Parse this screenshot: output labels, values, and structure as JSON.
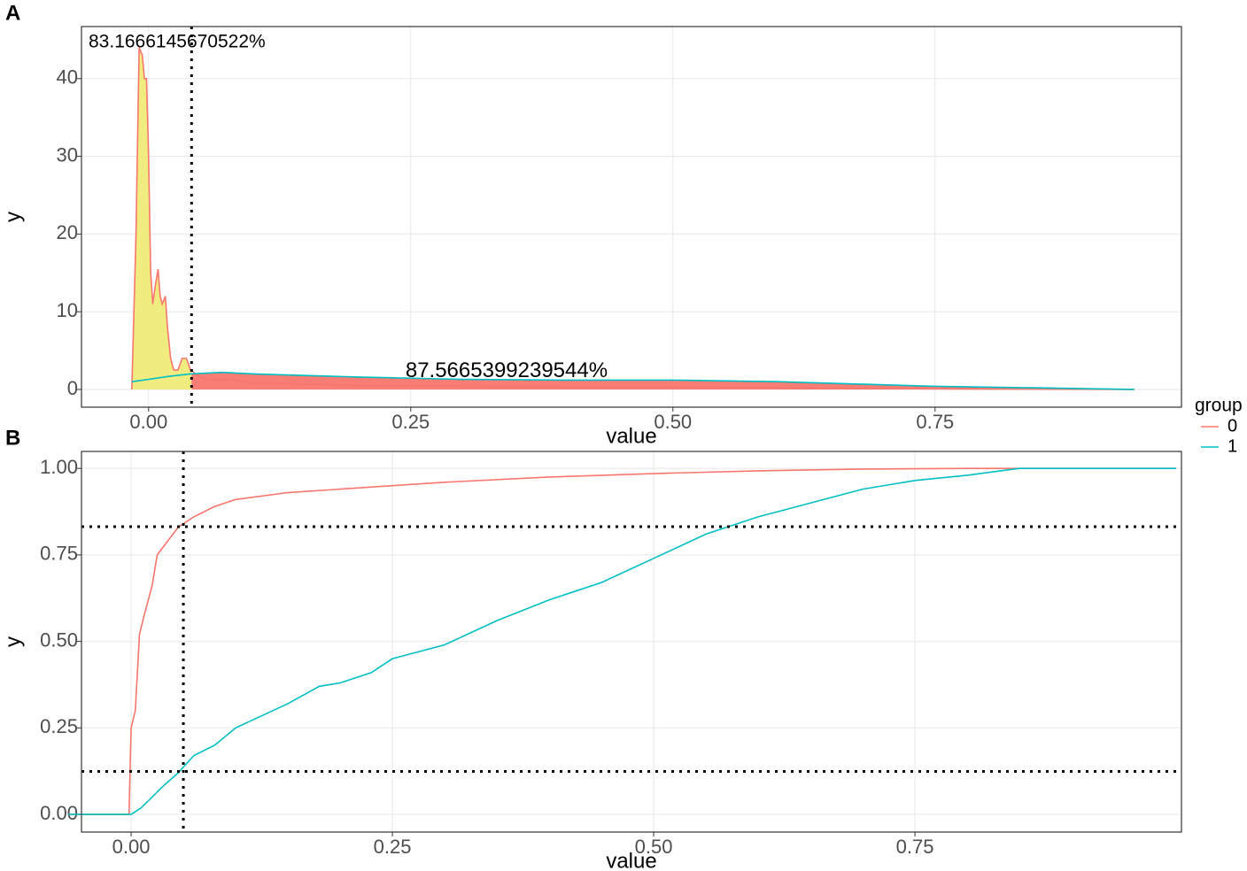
{
  "legend": {
    "title": "group",
    "entries": [
      {
        "label": "0",
        "color": "#F8766D"
      },
      {
        "label": "1",
        "color": "#00BFC4"
      }
    ]
  },
  "chart_data": [
    {
      "type": "line",
      "panel": "A",
      "xlabel": "value",
      "ylabel": "y",
      "xlim": [
        -0.064,
        0.985
      ],
      "ylim": [
        -2.28,
        46.7
      ],
      "xticks": [
        {
          "value": 0,
          "label": "0.00"
        },
        0.25,
        {
          "value": 0.5,
          "label": "0.50"
        },
        0.75
      ],
      "yticks": [
        0,
        10,
        20,
        30,
        40
      ],
      "grid": true,
      "vline": 0.041,
      "fill_colors": [
        "#F0EB78",
        "#F8766D"
      ],
      "annotations": [
        "83.1666145670522%",
        "87.5665399239544%"
      ],
      "series": [
        {
          "color": "#F8766D",
          "x": [
            -0.016,
            -0.012,
            -0.009,
            -0.006,
            -0.004,
            -0.002,
            0.0,
            0.002,
            0.004,
            0.006,
            0.009,
            0.011,
            0.013,
            0.016,
            0.018,
            0.021,
            0.024,
            0.028,
            0.032,
            0.036,
            0.04,
            0.05,
            0.06,
            0.08,
            0.1,
            0.15,
            0.2,
            0.3,
            0.4,
            0.5,
            0.6,
            0.7,
            0.8,
            0.9,
            0.94
          ],
          "values": [
            0,
            20,
            44,
            43,
            40,
            40,
            30,
            15,
            11,
            13,
            15.5,
            12,
            11,
            12,
            8,
            4,
            2.5,
            2.5,
            4,
            4,
            2.5,
            1.5,
            1.2,
            1.3,
            0.8,
            0.7,
            0.5,
            0.4,
            0.3,
            0.3,
            0.2,
            0.1,
            0.05,
            0.02,
            0
          ]
        },
        {
          "color": "#00BFC4",
          "x": [
            -0.016,
            0.0,
            0.02,
            0.04,
            0.07,
            0.1,
            0.2,
            0.3,
            0.4,
            0.5,
            0.6,
            0.7,
            0.75,
            0.85,
            0.94
          ],
          "values": [
            1.0,
            1.3,
            1.7,
            2.0,
            2.2,
            2.0,
            1.6,
            1.3,
            1.2,
            1.2,
            1.0,
            0.6,
            0.4,
            0.2,
            0
          ]
        }
      ]
    },
    {
      "type": "line",
      "panel": "B",
      "xlabel": "value",
      "ylabel": "y",
      "xlim": [
        -0.0475,
        1.005
      ],
      "ylim": [
        -0.051,
        1.049
      ],
      "xticks": [
        {
          "value": 0,
          "label": "0.00"
        },
        0.25,
        {
          "value": 0.5,
          "label": "0.50"
        },
        0.75
      ],
      "yticks": [
        {
          "value": 0,
          "label": "0.00"
        },
        0.25,
        {
          "value": 0.5,
          "label": "0.50"
        },
        0.75,
        {
          "value": 1,
          "label": "1.00"
        }
      ],
      "grid": true,
      "vline": 0.05,
      "hlines": [
        0.8317,
        0.1243
      ],
      "series": [
        {
          "color": "#F8766D",
          "x": [
            -0.06,
            -0.002,
            0.0,
            0.004,
            0.008,
            0.012,
            0.02,
            0.025,
            0.035,
            0.045,
            0.06,
            0.08,
            0.1,
            0.15,
            0.2,
            0.25,
            0.3,
            0.4,
            0.5,
            0.6,
            0.7,
            0.8,
            1.0
          ],
          "values": [
            0,
            0,
            0.25,
            0.3,
            0.52,
            0.57,
            0.66,
            0.75,
            0.79,
            0.83,
            0.86,
            0.89,
            0.91,
            0.93,
            0.94,
            0.95,
            0.96,
            0.975,
            0.985,
            0.993,
            0.998,
            1.0,
            1.0
          ]
        },
        {
          "color": "#00BFC4",
          "x": [
            -0.06,
            0.0,
            0.01,
            0.02,
            0.03,
            0.045,
            0.06,
            0.08,
            0.1,
            0.15,
            0.18,
            0.2,
            0.23,
            0.25,
            0.3,
            0.35,
            0.4,
            0.45,
            0.5,
            0.55,
            0.6,
            0.65,
            0.7,
            0.75,
            0.8,
            0.85,
            1.0
          ],
          "values": [
            0,
            0,
            0.02,
            0.05,
            0.08,
            0.12,
            0.17,
            0.2,
            0.25,
            0.32,
            0.37,
            0.38,
            0.41,
            0.45,
            0.49,
            0.56,
            0.62,
            0.67,
            0.74,
            0.81,
            0.86,
            0.9,
            0.94,
            0.965,
            0.98,
            1.0,
            1.0
          ]
        }
      ]
    }
  ]
}
